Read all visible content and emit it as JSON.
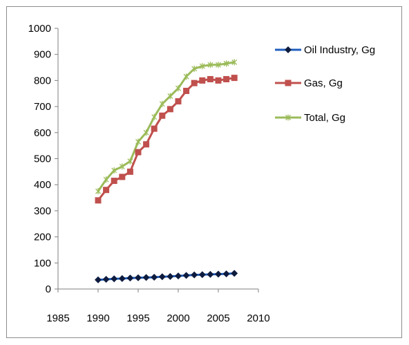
{
  "chart_data": {
    "type": "line",
    "title": "",
    "xlabel": "",
    "ylabel": "",
    "xlim": [
      1985,
      2010
    ],
    "ylim": [
      0,
      1000
    ],
    "x_ticks": [
      1985,
      1990,
      1995,
      2000,
      2005,
      2010
    ],
    "y_ticks": [
      0,
      100,
      200,
      300,
      400,
      500,
      600,
      700,
      800,
      900,
      1000
    ],
    "grid": false,
    "legend_position": "right",
    "x": [
      1990,
      1991,
      1992,
      1993,
      1994,
      1995,
      1996,
      1997,
      1998,
      1999,
      2000,
      2001,
      2002,
      2003,
      2004,
      2005,
      2006,
      2007
    ],
    "series": [
      {
        "name": "Oil Industry, Gg",
        "color": "#1f5fbf",
        "marker": "diamond",
        "marker_color": "#0d1b3e",
        "values": [
          35,
          37,
          39,
          40,
          42,
          43,
          44,
          45,
          47,
          48,
          50,
          52,
          54,
          55,
          56,
          57,
          58,
          60
        ]
      },
      {
        "name": "Gas, Gg",
        "color": "#c0504d",
        "marker": "square",
        "marker_color": "#c0504d",
        "values": [
          340,
          380,
          415,
          430,
          450,
          525,
          555,
          615,
          665,
          690,
          720,
          760,
          790,
          800,
          805,
          800,
          805,
          810
        ]
      },
      {
        "name": "Total, Gg",
        "color": "#9bbb59",
        "marker": "star",
        "marker_color": "#9bbb59",
        "values": [
          375,
          420,
          455,
          470,
          490,
          565,
          600,
          660,
          710,
          740,
          770,
          815,
          845,
          855,
          860,
          860,
          865,
          870
        ]
      }
    ]
  }
}
